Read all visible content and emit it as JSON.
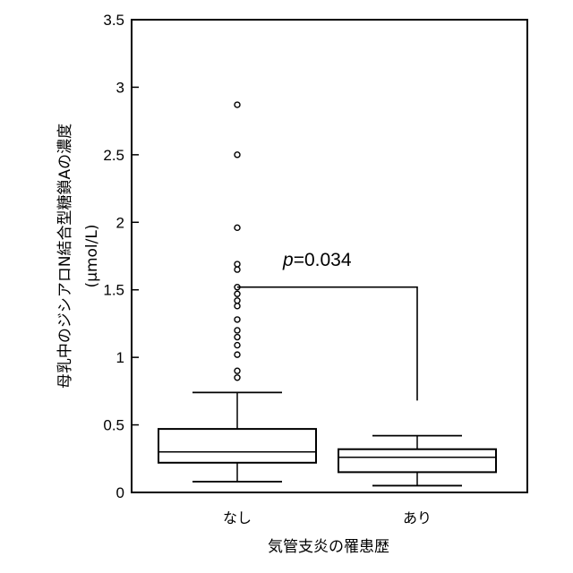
{
  "chart_data": {
    "type": "box",
    "title": "",
    "xlabel": "気管支炎の罹患歴",
    "ylabel": "母乳中のジシアロN結合型糖鎖Aの濃度",
    "ylabel_unit": "(μmol/L)",
    "ylim": [
      0,
      3.5
    ],
    "yticks": [
      "0",
      "0.5",
      "1",
      "1.5",
      "2",
      "2.5",
      "3",
      "3.5"
    ],
    "categories": [
      "なし",
      "あり"
    ],
    "boxes": [
      {
        "category": "なし",
        "whisker_low": 0.08,
        "q1": 0.22,
        "median": 0.3,
        "q3": 0.47,
        "whisker_high": 0.74,
        "outliers": [
          0.85,
          0.9,
          1.02,
          1.09,
          1.15,
          1.2,
          1.28,
          1.38,
          1.42,
          1.47,
          1.52,
          1.65,
          1.69,
          1.96,
          2.5,
          2.87
        ]
      },
      {
        "category": "あり",
        "whisker_low": 0.05,
        "q1": 0.15,
        "median": 0.26,
        "q3": 0.32,
        "whisker_high": 0.42,
        "outliers": []
      }
    ],
    "annotation": {
      "p_italic": "p",
      "p_value": "=0.034",
      "bracket_y": 1.52,
      "bracket_right_end": 0.68
    },
    "grid": false,
    "legend": "none"
  }
}
